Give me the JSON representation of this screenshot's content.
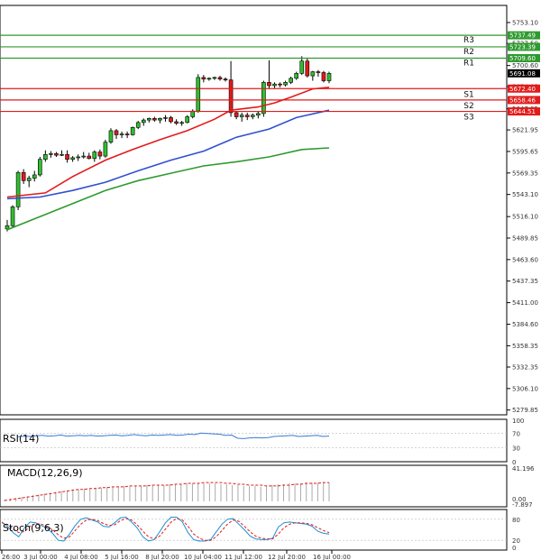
{
  "chart_data": {
    "type": "candlestick",
    "main": {
      "yaxis_ticks": [
        5753.1,
        5727.5,
        5700.6,
        5674.85,
        5647.85,
        5621.95,
        5595.65,
        5569.35,
        5543.1,
        5516.1,
        5489.85,
        5463.6,
        5437.35,
        5411.0,
        5384.6,
        5358.35,
        5332.35,
        5306.1,
        5279.85
      ],
      "ylim": [
        5274.0,
        5774.0
      ],
      "candles": [
        {
          "o": 5501,
          "h": 5512,
          "l": 5498,
          "c": 5505
        },
        {
          "o": 5505,
          "h": 5530,
          "l": 5502,
          "c": 5528
        },
        {
          "o": 5528,
          "h": 5572,
          "l": 5524,
          "c": 5570
        },
        {
          "o": 5570,
          "h": 5574,
          "l": 5556,
          "c": 5560
        },
        {
          "o": 5560,
          "h": 5566,
          "l": 5552,
          "c": 5563
        },
        {
          "o": 5563,
          "h": 5572,
          "l": 5559,
          "c": 5567
        },
        {
          "o": 5567,
          "h": 5589,
          "l": 5565,
          "c": 5586
        },
        {
          "o": 5586,
          "h": 5597,
          "l": 5583,
          "c": 5592
        },
        {
          "o": 5592,
          "h": 5596,
          "l": 5588,
          "c": 5593
        },
        {
          "o": 5593,
          "h": 5595,
          "l": 5589,
          "c": 5591
        },
        {
          "o": 5591,
          "h": 5597,
          "l": 5590,
          "c": 5592
        },
        {
          "o": 5592,
          "h": 5597,
          "l": 5582,
          "c": 5586
        },
        {
          "o": 5586,
          "h": 5590,
          "l": 5583,
          "c": 5588
        },
        {
          "o": 5588,
          "h": 5592,
          "l": 5584,
          "c": 5589
        },
        {
          "o": 5589,
          "h": 5595,
          "l": 5587,
          "c": 5590
        },
        {
          "o": 5590,
          "h": 5594,
          "l": 5586,
          "c": 5587
        },
        {
          "o": 5587,
          "h": 5597,
          "l": 5583,
          "c": 5595
        },
        {
          "o": 5595,
          "h": 5598,
          "l": 5586,
          "c": 5590
        },
        {
          "o": 5590,
          "h": 5610,
          "l": 5588,
          "c": 5607
        },
        {
          "o": 5607,
          "h": 5624,
          "l": 5605,
          "c": 5621
        },
        {
          "o": 5621,
          "h": 5623,
          "l": 5611,
          "c": 5616
        },
        {
          "o": 5616,
          "h": 5620,
          "l": 5612,
          "c": 5617
        },
        {
          "o": 5617,
          "h": 5620,
          "l": 5612,
          "c": 5616
        },
        {
          "o": 5616,
          "h": 5626,
          "l": 5615,
          "c": 5625
        },
        {
          "o": 5625,
          "h": 5633,
          "l": 5623,
          "c": 5631
        },
        {
          "o": 5631,
          "h": 5636,
          "l": 5627,
          "c": 5634
        },
        {
          "o": 5634,
          "h": 5637,
          "l": 5631,
          "c": 5636
        },
        {
          "o": 5636,
          "h": 5638,
          "l": 5632,
          "c": 5634
        },
        {
          "o": 5634,
          "h": 5637,
          "l": 5630,
          "c": 5636
        },
        {
          "o": 5636,
          "h": 5640,
          "l": 5632,
          "c": 5637
        },
        {
          "o": 5637,
          "h": 5639,
          "l": 5630,
          "c": 5632
        },
        {
          "o": 5632,
          "h": 5635,
          "l": 5628,
          "c": 5630
        },
        {
          "o": 5630,
          "h": 5633,
          "l": 5627,
          "c": 5631
        },
        {
          "o": 5631,
          "h": 5640,
          "l": 5630,
          "c": 5638
        },
        {
          "o": 5638,
          "h": 5647,
          "l": 5636,
          "c": 5645
        },
        {
          "o": 5645,
          "h": 5690,
          "l": 5643,
          "c": 5686
        },
        {
          "o": 5686,
          "h": 5689,
          "l": 5680,
          "c": 5684
        },
        {
          "o": 5684,
          "h": 5686,
          "l": 5682,
          "c": 5685
        },
        {
          "o": 5685,
          "h": 5687,
          "l": 5683,
          "c": 5686
        },
        {
          "o": 5686,
          "h": 5688,
          "l": 5682,
          "c": 5684
        },
        {
          "o": 5684,
          "h": 5686,
          "l": 5681,
          "c": 5683
        },
        {
          "o": 5683,
          "h": 5706,
          "l": 5638,
          "c": 5643
        },
        {
          "o": 5643,
          "h": 5645,
          "l": 5635,
          "c": 5638
        },
        {
          "o": 5638,
          "h": 5643,
          "l": 5632,
          "c": 5640
        },
        {
          "o": 5640,
          "h": 5643,
          "l": 5634,
          "c": 5638
        },
        {
          "o": 5638,
          "h": 5642,
          "l": 5635,
          "c": 5640
        },
        {
          "o": 5640,
          "h": 5645,
          "l": 5636,
          "c": 5642
        },
        {
          "o": 5642,
          "h": 5682,
          "l": 5638,
          "c": 5680
        },
        {
          "o": 5680,
          "h": 5707,
          "l": 5672,
          "c": 5676
        },
        {
          "o": 5676,
          "h": 5680,
          "l": 5673,
          "c": 5678
        },
        {
          "o": 5678,
          "h": 5680,
          "l": 5674,
          "c": 5677
        },
        {
          "o": 5677,
          "h": 5682,
          "l": 5675,
          "c": 5680
        },
        {
          "o": 5680,
          "h": 5687,
          "l": 5678,
          "c": 5685
        },
        {
          "o": 5685,
          "h": 5693,
          "l": 5683,
          "c": 5691
        },
        {
          "o": 5691,
          "h": 5712,
          "l": 5689,
          "c": 5706
        },
        {
          "o": 5706,
          "h": 5709,
          "l": 5686,
          "c": 5688
        },
        {
          "o": 5688,
          "h": 5694,
          "l": 5682,
          "c": 5693
        },
        {
          "o": 5693,
          "h": 5695,
          "l": 5687,
          "c": 5692
        },
        {
          "o": 5692,
          "h": 5694,
          "l": 5680,
          "c": 5682
        },
        {
          "o": 5682,
          "h": 5693,
          "l": 5679,
          "c": 5691
        }
      ],
      "ma_red": [
        [
          0,
          5540
        ],
        [
          7,
          5545
        ],
        [
          12,
          5565
        ],
        [
          18,
          5585
        ],
        [
          23,
          5598
        ],
        [
          28,
          5610
        ],
        [
          33,
          5621
        ],
        [
          38,
          5635
        ],
        [
          41,
          5646
        ],
        [
          46,
          5650
        ],
        [
          49,
          5655
        ],
        [
          52,
          5662
        ],
        [
          56,
          5672
        ],
        [
          59,
          5674
        ]
      ],
      "ma_blue": [
        [
          0,
          5538
        ],
        [
          6,
          5540
        ],
        [
          12,
          5548
        ],
        [
          18,
          5558
        ],
        [
          24,
          5572
        ],
        [
          30,
          5585
        ],
        [
          36,
          5596
        ],
        [
          42,
          5613
        ],
        [
          48,
          5623
        ],
        [
          53,
          5637
        ],
        [
          59,
          5646
        ]
      ],
      "ma_green": [
        [
          0,
          5500
        ],
        [
          6,
          5516
        ],
        [
          12,
          5532
        ],
        [
          18,
          5548
        ],
        [
          24,
          5560
        ],
        [
          30,
          5569
        ],
        [
          36,
          5578
        ],
        [
          42,
          5583
        ],
        [
          48,
          5589
        ],
        [
          54,
          5598
        ],
        [
          59,
          5600
        ]
      ],
      "levels": [
        {
          "name": "R3",
          "value": 5737.49,
          "label": "5737.49",
          "color": "#2f9a2f"
        },
        {
          "name": "R2",
          "value": 5723.39,
          "label": "5723.39",
          "color": "#2f9a2f"
        },
        {
          "name": "R1",
          "value": 5709.6,
          "label": "5709.60",
          "color": "#2f9a2f"
        },
        {
          "name": "S1",
          "value": 5672.4,
          "label": "5672.40",
          "color": "#e21b1b"
        },
        {
          "name": "S2",
          "value": 5658.46,
          "label": "5658.46",
          "color": "#e21b1b"
        },
        {
          "name": "S3",
          "value": 5644.51,
          "label": "5644.51",
          "color": "#e21b1b"
        }
      ],
      "current_price": {
        "value": 5691.08,
        "label": "5691.08"
      }
    },
    "xaxis_labels": [
      "26:00",
      "3 Jul 00:00",
      "4 Jul 08:00",
      "5 Jul 16:00",
      "8 Jul 20:00",
      "10 Jul 04:00",
      "11 Jul 12:00",
      "12 Jul 20:00",
      "16 Jul 00:00"
    ],
    "rsi": {
      "title": "RSI(14)",
      "ticks": [
        "100",
        "70",
        "30",
        "0"
      ],
      "values": [
        60,
        62,
        61,
        63,
        64,
        62,
        63,
        65,
        62,
        63,
        64,
        63,
        64,
        62,
        63,
        64,
        65,
        63,
        64,
        66,
        64,
        63,
        65,
        64,
        65,
        66,
        64,
        65,
        67,
        66,
        70,
        69,
        68,
        67,
        64,
        65,
        56,
        55,
        57,
        58,
        57,
        58,
        61,
        62,
        63,
        64,
        61,
        62,
        63,
        64,
        61,
        62
      ]
    },
    "macd": {
      "title": "MACD(12,26,9)",
      "ticks": [
        "41.196",
        "0.00",
        "-7.897"
      ],
      "hist": [
        2,
        3,
        4,
        5,
        6,
        7,
        8,
        9,
        10,
        11,
        12,
        13,
        14,
        14,
        15,
        15,
        16,
        16,
        17,
        17,
        17,
        18,
        18,
        18,
        18,
        19,
        19,
        19,
        19,
        20,
        20,
        20,
        21,
        21,
        21,
        21,
        21,
        21,
        20,
        20,
        19,
        19,
        18,
        18,
        18,
        17,
        18,
        19,
        20,
        20,
        21,
        21,
        21,
        22,
        22,
        22,
        22,
        22
      ],
      "signal": [
        1,
        2,
        3,
        4,
        5,
        6,
        7,
        8,
        9,
        10,
        11,
        12,
        13,
        14,
        14,
        15,
        15,
        16,
        16,
        17,
        17,
        17,
        18,
        18,
        18,
        18,
        19,
        19,
        19,
        19,
        20,
        20,
        21,
        21,
        21,
        22,
        22,
        22,
        22,
        21,
        21,
        20,
        20,
        19,
        19,
        19,
        18,
        18,
        18,
        19,
        19,
        20,
        20,
        21,
        21,
        21,
        22,
        22
      ]
    },
    "stoch": {
      "title": "Stoch(9,6,3)",
      "ticks": [
        "80",
        "20",
        "0"
      ],
      "k": [
        72,
        60,
        42,
        30,
        55,
        72,
        70,
        62,
        55,
        40,
        20,
        18,
        38,
        62,
        80,
        84,
        78,
        72,
        60,
        58,
        70,
        84,
        86,
        72,
        55,
        30,
        18,
        22,
        45,
        70,
        86,
        86,
        72,
        42,
        22,
        18,
        18,
        22,
        44,
        66,
        80,
        82,
        66,
        50,
        32,
        24,
        22,
        22,
        26,
        58,
        70,
        72,
        70,
        68,
        66,
        60,
        46,
        40,
        38
      ],
      "d": [
        70,
        65,
        52,
        42,
        45,
        60,
        68,
        66,
        60,
        50,
        36,
        26,
        30,
        48,
        66,
        78,
        80,
        76,
        68,
        62,
        64,
        76,
        82,
        78,
        64,
        46,
        30,
        24,
        32,
        52,
        72,
        82,
        78,
        60,
        38,
        26,
        20,
        20,
        30,
        48,
        66,
        78,
        74,
        60,
        44,
        32,
        26,
        24,
        24,
        38,
        56,
        66,
        70,
        70,
        68,
        64,
        56,
        48,
        42
      ]
    }
  }
}
